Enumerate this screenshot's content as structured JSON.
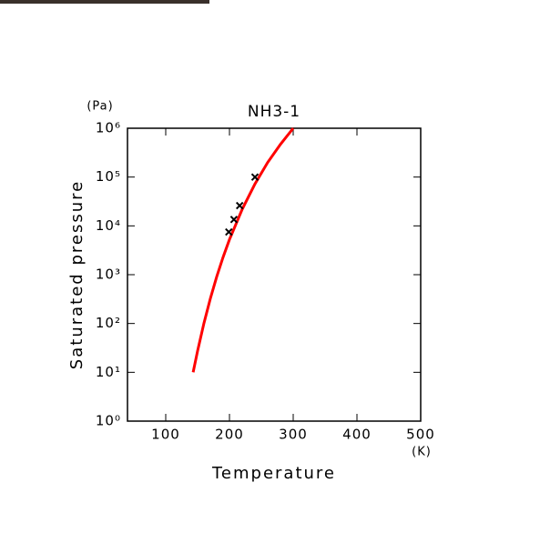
{
  "chart_data": {
    "type": "line",
    "title": "NH3-1",
    "x_label": "Temperature",
    "x_unit": "(K)",
    "y_label": "Saturated pressure",
    "y_unit": "(Pa)",
    "xlim": [
      40,
      500
    ],
    "xticks": [
      100,
      200,
      300,
      400,
      500
    ],
    "ylim": [
      1,
      1000000
    ],
    "y_scale": "log",
    "yticks": [
      {
        "value": 1,
        "label": "10⁰"
      },
      {
        "value": 10,
        "label": "10¹"
      },
      {
        "value": 100,
        "label": "10²"
      },
      {
        "value": 1000,
        "label": "10³"
      },
      {
        "value": 10000,
        "label": "10⁴"
      },
      {
        "value": 100000,
        "label": "10⁵"
      },
      {
        "value": 1000000,
        "label": "10⁶"
      }
    ],
    "series": [
      {
        "style": "line",
        "color": "#ff0000",
        "x": [
          143,
          150,
          160,
          170,
          180,
          190,
          200,
          220,
          240,
          260,
          280,
          300
        ],
        "values": [
          10,
          27.5,
          102,
          324,
          912,
          2290,
          5250,
          21900,
          72400,
          200000,
          468000,
          1000000
        ]
      },
      {
        "style": "markers",
        "color": "#000000",
        "x": [
          199,
          207,
          216,
          240
        ],
        "values": [
          7500,
          13500,
          26000,
          100000
        ]
      }
    ]
  }
}
